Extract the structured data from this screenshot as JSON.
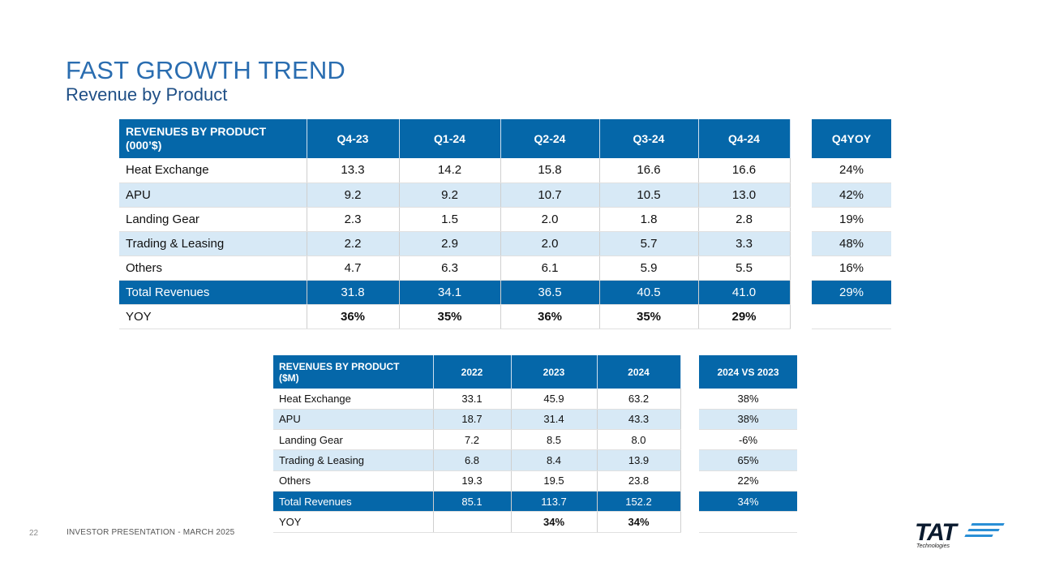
{
  "title": "FAST GROWTH TREND",
  "subtitle": "Revenue by Product",
  "quarterly": {
    "header_line1": "REVENUES BY PRODUCT",
    "header_line2": "(000’$)",
    "columns": [
      "Q4-23",
      "Q1-24",
      "Q2-24",
      "Q3-24",
      "Q4-24"
    ],
    "yoy_header": "Q4YOY",
    "rows": [
      {
        "label": "Heat Exchange",
        "values": [
          "13.3",
          "14.2",
          "15.8",
          "16.6",
          "16.6"
        ],
        "yoy": "24%"
      },
      {
        "label": "APU",
        "values": [
          "9.2",
          "9.2",
          "10.7",
          "10.5",
          "13.0"
        ],
        "yoy": "42%"
      },
      {
        "label": "Landing Gear",
        "values": [
          "2.3",
          "1.5",
          "2.0",
          "1.8",
          "2.8"
        ],
        "yoy": "19%"
      },
      {
        "label": "Trading & Leasing",
        "values": [
          "2.2",
          "2.9",
          "2.0",
          "5.7",
          "3.3"
        ],
        "yoy": "48%"
      },
      {
        "label": "Others",
        "values": [
          "4.7",
          "6.3",
          "6.1",
          "5.9",
          "5.5"
        ],
        "yoy": "16%"
      },
      {
        "label": "Total Revenues",
        "values": [
          "31.8",
          "34.1",
          "36.5",
          "40.5",
          "41.0"
        ],
        "yoy": "29%"
      },
      {
        "label": "YOY",
        "values": [
          "36%",
          "35%",
          "36%",
          "35%",
          "29%"
        ],
        "yoy": ""
      }
    ]
  },
  "annual": {
    "header_line1": "REVENUES BY PRODUCT",
    "header_line2": "($M)",
    "columns": [
      "2022",
      "2023",
      "2024"
    ],
    "yoy_header": "2024 VS 2023",
    "rows": [
      {
        "label": "Heat Exchange",
        "values": [
          "33.1",
          "45.9",
          "63.2"
        ],
        "yoy": "38%"
      },
      {
        "label": "APU",
        "values": [
          "18.7",
          "31.4",
          "43.3"
        ],
        "yoy": "38%"
      },
      {
        "label": "Landing Gear",
        "values": [
          "7.2",
          "8.5",
          "8.0"
        ],
        "yoy": "-6%"
      },
      {
        "label": "Trading & Leasing",
        "values": [
          "6.8",
          "8.4",
          "13.9"
        ],
        "yoy": "65%"
      },
      {
        "label": "Others",
        "values": [
          "19.3",
          "19.5",
          "23.8"
        ],
        "yoy": "22%"
      },
      {
        "label": "Total Revenues",
        "values": [
          "85.1",
          "113.7",
          "152.2"
        ],
        "yoy": "34%"
      },
      {
        "label": "YOY",
        "values": [
          "",
          "34%",
          "34%"
        ],
        "yoy": ""
      }
    ]
  },
  "footer": {
    "page_number": "22",
    "text": "INVESTOR PRESENTATION  -  MARCH 2025"
  },
  "logo": {
    "word": "TAT",
    "sub": "Technologies",
    "accent_color": "#2a8fd6"
  },
  "colors": {
    "header_blue": "#0567a9",
    "alt_row": "#d7e9f6",
    "title_blue": "#2a6db0"
  }
}
